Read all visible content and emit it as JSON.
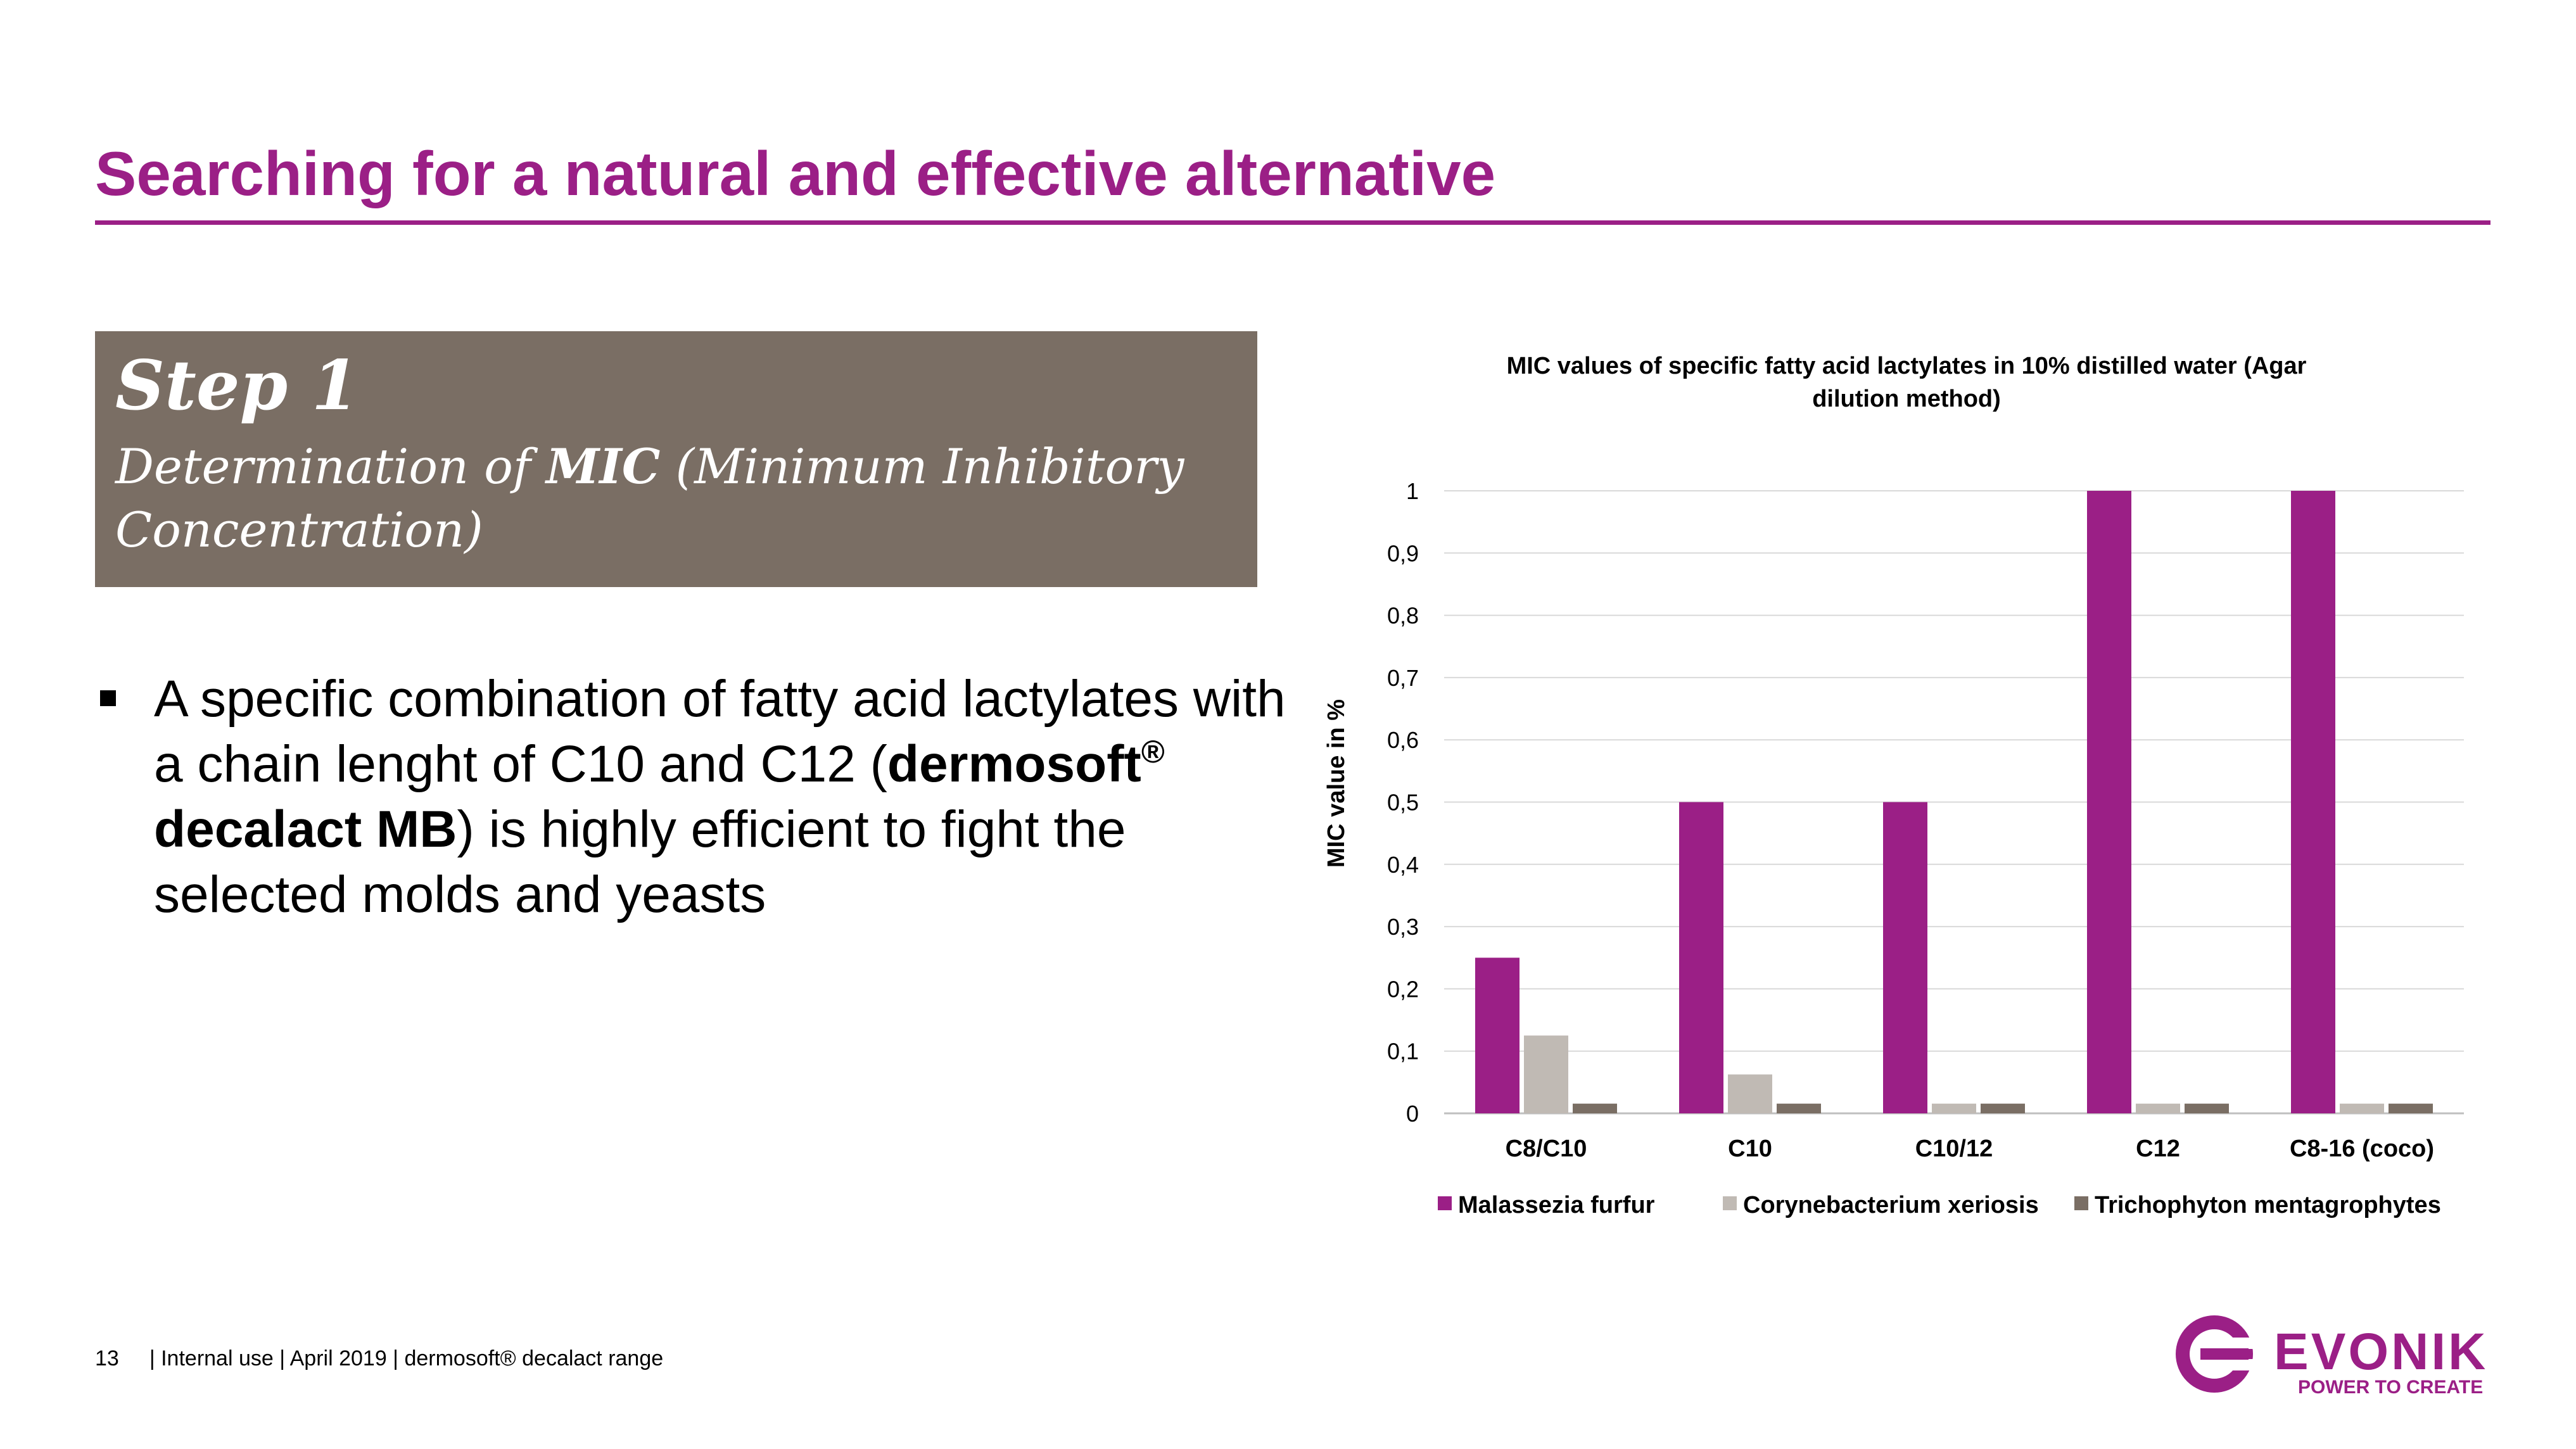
{
  "slide": {
    "title": "Searching for a natural and effective alternative"
  },
  "step": {
    "heading": "Step 1",
    "subtitle_pre": "Determination of ",
    "subtitle_bold": "MIC",
    "subtitle_post": " (Minimum Inhibitory Concentration)"
  },
  "bullet": {
    "text_pre": "A specific combination of fatty acid lactylates with a chain lenght of C10 and C12 (",
    "product_name": "dermosoft",
    "registered_mark": "®",
    "product_suffix": " decalact MB",
    "text_post": ") is highly efficient to fight the selected molds and yeasts"
  },
  "footer": {
    "page_number": "13",
    "text": "|  Internal use  |  April 2019  |  dermosoft® decalact range"
  },
  "logo": {
    "wordmark": "EVONIK",
    "tagline": "POWER TO CREATE"
  },
  "colors": {
    "accent": "#9b1f86",
    "step_box": "#7a6e64",
    "series": [
      "#9b1f86",
      "#c0bab4",
      "#7a6e64"
    ]
  },
  "chart_data": {
    "type": "bar",
    "title": "MIC values of specific fatty acid lactylates in 10% distilled water (Agar dilution method)",
    "title_lines": [
      "MIC values of specific fatty acid lactylates in 10% distilled water (Agar",
      "dilution method)"
    ],
    "xlabel": "",
    "ylabel": "MIC value in %",
    "ylim": [
      0,
      1
    ],
    "yticks": [
      "0",
      "0,1",
      "0,2",
      "0,3",
      "0,4",
      "0,5",
      "0,6",
      "0,7",
      "0,8",
      "0,9",
      "1"
    ],
    "grid": true,
    "legend_position": "bottom",
    "categories": [
      "C8/C10",
      "C10",
      "C10/12",
      "C12",
      "C8-16 (coco)"
    ],
    "series": [
      {
        "name": "Malassezia furfur",
        "values": [
          0.25,
          0.5,
          0.5,
          1.0,
          1.0
        ]
      },
      {
        "name": "Corynebacterium xeriosis",
        "values": [
          0.125,
          0.0625,
          0.0156,
          0.0156,
          0.0156
        ]
      },
      {
        "name": "Trichophyton mentagrophytes",
        "values": [
          0.0156,
          0.0156,
          0.0156,
          0.0156,
          0.0156
        ]
      }
    ]
  }
}
